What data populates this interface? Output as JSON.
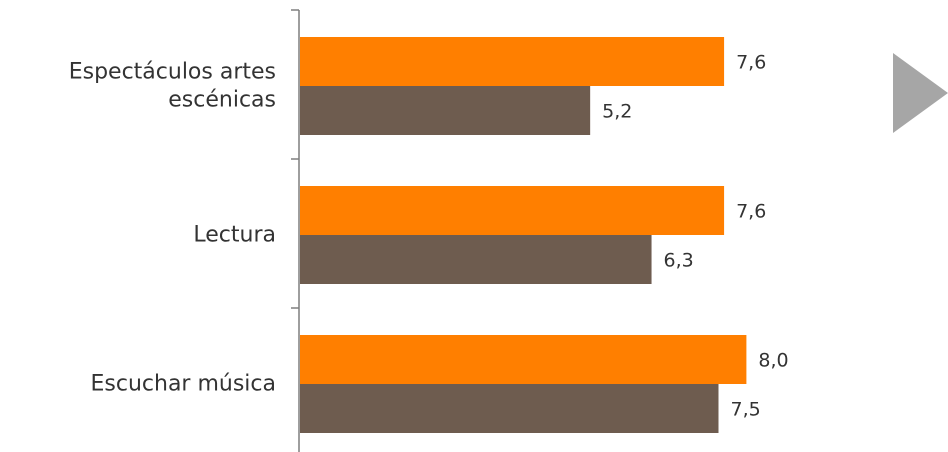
{
  "chart_data": {
    "type": "bar",
    "orientation": "horizontal",
    "categories": [
      [
        "Espectáculos artes",
        "escénicas"
      ],
      [
        "Lectura"
      ],
      [
        "Escuchar música"
      ]
    ],
    "series": [
      {
        "color": "#FF7F00",
        "values": [
          7.6,
          7.6,
          8.0
        ],
        "labels": [
          "7,6",
          "7,6",
          "8,0"
        ]
      },
      {
        "color": "#6E5C4F",
        "values": [
          5.2,
          6.3,
          7.5
        ],
        "labels": [
          "5,2",
          "6,3",
          "7,5"
        ]
      }
    ],
    "xlim": [
      0,
      10
    ],
    "grid": false,
    "axis_color": "#7F7F7F",
    "decoration": {
      "name": "play-triangle-icon",
      "color": "#A6A6A6"
    }
  }
}
